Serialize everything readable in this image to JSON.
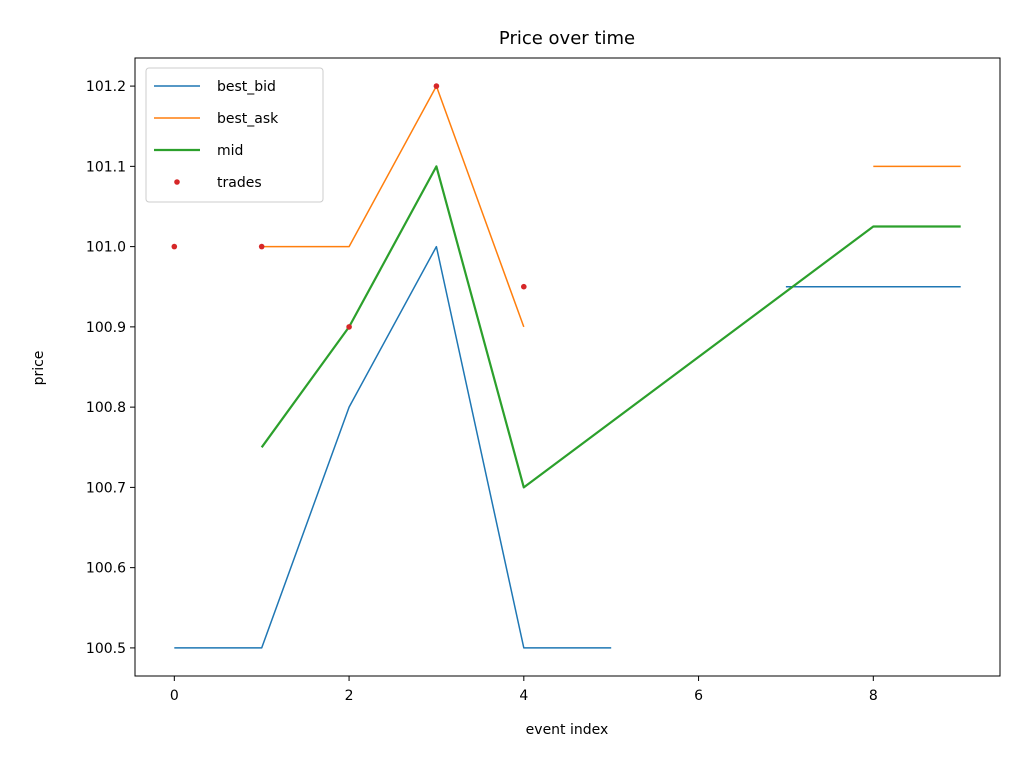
{
  "chart_data": {
    "type": "line",
    "title": "Price over time",
    "xlabel": "event index",
    "ylabel": "price",
    "xlim": [
      -0.45,
      9.45
    ],
    "ylim": [
      100.465,
      101.235
    ],
    "x_ticks": [
      0,
      2,
      4,
      6,
      8
    ],
    "x_tick_labels": [
      "0",
      "2",
      "4",
      "6",
      "8"
    ],
    "y_ticks": [
      100.5,
      100.6,
      100.7,
      100.8,
      100.9,
      101.0,
      101.1,
      101.2
    ],
    "y_tick_labels": [
      "100.5",
      "100.6",
      "100.7",
      "100.8",
      "100.9",
      "101.0",
      "101.1",
      "101.2"
    ],
    "grid": false,
    "legend_position": "top-left",
    "series": [
      {
        "name": "best_bid",
        "kind": "line",
        "color": "#1f77b4",
        "points": [
          [
            0,
            100.5
          ],
          [
            1,
            100.5
          ],
          [
            2,
            100.8
          ],
          [
            3,
            101.0
          ],
          [
            4,
            100.5
          ],
          [
            5,
            100.5
          ],
          [
            6,
            null
          ],
          [
            7,
            100.95
          ],
          [
            8,
            100.95
          ],
          [
            9,
            100.95
          ]
        ]
      },
      {
        "name": "best_ask",
        "kind": "line",
        "color": "#ff7f0e",
        "points": [
          [
            0,
            null
          ],
          [
            1,
            101.0
          ],
          [
            2,
            101.0
          ],
          [
            3,
            101.2
          ],
          [
            4,
            100.9
          ],
          [
            5,
            null
          ],
          [
            6,
            null
          ],
          [
            7,
            null
          ],
          [
            8,
            101.1
          ],
          [
            9,
            101.1
          ]
        ]
      },
      {
        "name": "mid",
        "kind": "line",
        "color": "#2ca02c",
        "points": [
          [
            0,
            null
          ],
          [
            1,
            100.75
          ],
          [
            2,
            100.9
          ],
          [
            3,
            101.1
          ],
          [
            4,
            100.7
          ],
          [
            8,
            101.025
          ],
          [
            9,
            101.025
          ]
        ]
      },
      {
        "name": "trades",
        "kind": "scatter",
        "color": "#d62728",
        "points": [
          [
            0,
            101.0
          ],
          [
            1,
            101.0
          ],
          [
            2,
            100.9
          ],
          [
            3,
            101.2
          ],
          [
            4,
            100.95
          ]
        ]
      }
    ]
  }
}
